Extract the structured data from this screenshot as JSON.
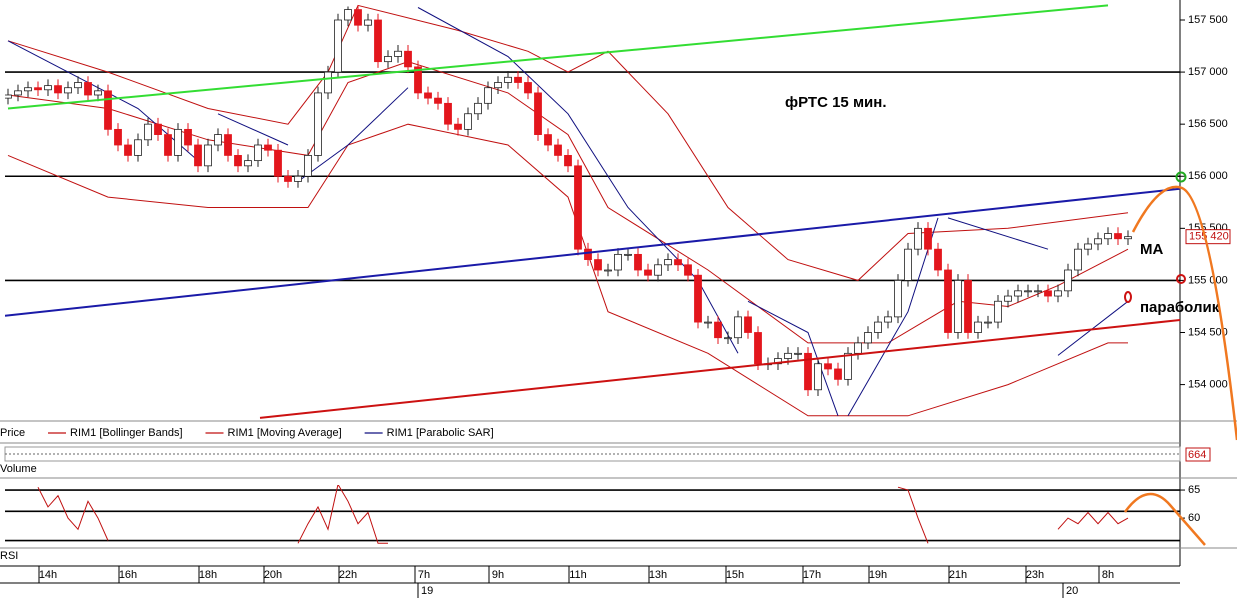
{
  "chart_data": {
    "type": "candlestick",
    "annotations": [
      "фРТС   15 мин.",
      "МА",
      "параболик"
    ],
    "legend": {
      "price": "Price"
    },
    "open": [
      156750,
      156780,
      156820,
      156850,
      156830,
      156870,
      156800,
      156850,
      156900,
      156780,
      156820,
      156450,
      156300,
      156200,
      156350,
      156500,
      156400,
      156200,
      156450,
      156300,
      156100,
      156300,
      156400,
      156200,
      156100,
      156150,
      156300,
      156250,
      156000,
      155950,
      156000,
      156200,
      156800,
      157000,
      157500,
      157600,
      157450,
      157500,
      157100,
      157150,
      157200,
      157050,
      156800,
      156750,
      156700,
      156500,
      156450,
      156600,
      156700,
      156850,
      156900,
      156950,
      156900,
      156800,
      156400,
      156300,
      156200,
      156100,
      155300,
      155200,
      155100,
      155100,
      155250,
      155250,
      155100,
      155050,
      155150,
      155200,
      155150,
      155050,
      154600,
      154600,
      154450,
      154450,
      154650,
      154500,
      154200,
      154200,
      154250,
      154300,
      154300,
      153950,
      154200,
      154150,
      154050,
      154300,
      154400,
      154500,
      154600,
      154650,
      155000,
      155300,
      155500,
      155300,
      155100,
      154500,
      155000,
      154500,
      154600,
      154600,
      154800,
      154850,
      154900,
      154900,
      154900,
      154850,
      154900,
      155100,
      155300,
      155350,
      155400,
      155450,
      155400
    ],
    "high": [
      156840,
      156880,
      156910,
      156910,
      156930,
      156930,
      156910,
      156960,
      156960,
      156880,
      156880,
      156510,
      156360,
      156410,
      156560,
      156560,
      156460,
      156510,
      156510,
      156360,
      156360,
      156460,
      156460,
      156260,
      156210,
      156360,
      156360,
      156310,
      156060,
      156060,
      156260,
      156860,
      157060,
      157560,
      157630,
      157640,
      157560,
      157560,
      157210,
      157260,
      157260,
      157110,
      156860,
      156810,
      156760,
      156560,
      156660,
      156760,
      156910,
      156960,
      157010,
      157010,
      156960,
      156860,
      156460,
      156360,
      156260,
      156160,
      155360,
      155260,
      155160,
      155310,
      155310,
      155310,
      155160,
      155210,
      155260,
      155260,
      155210,
      155110,
      154660,
      154660,
      154510,
      154710,
      154710,
      154560,
      154260,
      154310,
      154360,
      154360,
      154360,
      154260,
      154260,
      154210,
      154360,
      154460,
      154560,
      154660,
      154710,
      155060,
      155360,
      155560,
      155560,
      155360,
      155160,
      155060,
      155060,
      154660,
      154660,
      154860,
      154910,
      154960,
      154960,
      154960,
      154960,
      154960,
      155160,
      155360,
      155410,
      155460,
      155510,
      155510,
      155480
    ],
    "low": [
      156690,
      156720,
      156760,
      156770,
      156770,
      156740,
      156740,
      156790,
      156720,
      156720,
      156390,
      156240,
      156140,
      156140,
      156290,
      156340,
      156140,
      156140,
      156240,
      156040,
      156040,
      156240,
      156140,
      156040,
      156040,
      156090,
      156190,
      155940,
      155890,
      155890,
      155940,
      156140,
      156740,
      156940,
      157440,
      157390,
      157390,
      157040,
      157040,
      157090,
      156990,
      156740,
      156690,
      156640,
      156440,
      156390,
      156390,
      156540,
      156640,
      156790,
      156840,
      156840,
      156740,
      156340,
      156240,
      156140,
      156040,
      155240,
      155140,
      155040,
      155040,
      155040,
      155190,
      155040,
      154990,
      154990,
      155090,
      155090,
      154990,
      154540,
      154540,
      154390,
      154390,
      154390,
      154440,
      154140,
      154140,
      154140,
      154190,
      154240,
      153890,
      153890,
      154090,
      153990,
      153990,
      154240,
      154340,
      154440,
      154540,
      154590,
      154940,
      155240,
      155240,
      155040,
      154440,
      154440,
      154440,
      154440,
      154540,
      154540,
      154740,
      154790,
      154840,
      154840,
      154790,
      154790,
      154840,
      155040,
      155240,
      155290,
      155340,
      155340,
      155340
    ],
    "close": [
      156780,
      156820,
      156850,
      156830,
      156870,
      156800,
      156850,
      156900,
      156780,
      156820,
      156450,
      156300,
      156200,
      156350,
      156500,
      156400,
      156200,
      156450,
      156300,
      156100,
      156300,
      156400,
      156200,
      156100,
      156150,
      156300,
      156250,
      156000,
      155950,
      156000,
      156200,
      156800,
      157000,
      157500,
      157600,
      157450,
      157500,
      157100,
      157150,
      157200,
      157050,
      156800,
      156750,
      156700,
      156500,
      156450,
      156600,
      156700,
      156850,
      156900,
      156950,
      156900,
      156800,
      156400,
      156300,
      156200,
      156100,
      155300,
      155200,
      155100,
      155100,
      155250,
      155250,
      155100,
      155050,
      155150,
      155200,
      155150,
      155050,
      154600,
      154600,
      154450,
      154450,
      154650,
      154500,
      154200,
      154200,
      154250,
      154300,
      154300,
      153950,
      154200,
      154150,
      154050,
      154300,
      154400,
      154500,
      154600,
      154650,
      155000,
      155300,
      155500,
      155300,
      155100,
      154500,
      155000,
      154500,
      154600,
      154600,
      154800,
      154850,
      154900,
      154900,
      154900,
      154850,
      154900,
      155100,
      155300,
      155350,
      155400,
      155450,
      155400,
      155420
    ],
    "up_color": "#ffffff",
    "down_color": "#e3161d",
    "xlim": [
      -0.3,
      117.2
    ],
    "ylim": [
      153660,
      157644
    ],
    "yticks": [
      {
        "value": 154000,
        "label": "154 000"
      },
      {
        "value": 154500,
        "label": "154 500"
      },
      {
        "value": 155000,
        "label": "155 000"
      },
      {
        "value": 155500,
        "label": "155 500"
      },
      {
        "value": 156000,
        "label": "156 000"
      },
      {
        "value": 156500,
        "label": "156 500"
      },
      {
        "value": 157000,
        "label": "157 000"
      },
      {
        "value": 157500,
        "label": "157 500"
      }
    ],
    "last_price": {
      "value": 155420,
      "label": "155 420"
    },
    "xticks": [
      {
        "value": 4,
        "label": "14h"
      },
      {
        "value": 12,
        "label": "16h"
      },
      {
        "value": 20,
        "label": "18h"
      },
      {
        "value": 26.5,
        "label": "20h"
      },
      {
        "value": 34,
        "label": "22h"
      },
      {
        "value": 41.6,
        "label": "7h"
      },
      {
        "value": 49,
        "label": "9h"
      },
      {
        "value": 57,
        "label": "11h"
      },
      {
        "value": 65,
        "label": "13h"
      },
      {
        "value": 72.7,
        "label": "15h"
      },
      {
        "value": 80.4,
        "label": "17h"
      },
      {
        "value": 87,
        "label": "19h"
      },
      {
        "value": 95,
        "label": "21h"
      },
      {
        "value": 102.7,
        "label": "23h"
      },
      {
        "value": 110,
        "label": "8h"
      }
    ],
    "date_ticks": [
      {
        "value": 41,
        "label": "19"
      },
      {
        "value": 105.5,
        "label": "20"
      }
    ],
    "hlines": [
      {
        "value": 157000,
        "color": "#000000"
      },
      {
        "value": 156000,
        "color": "#000000"
      },
      {
        "value": 155000,
        "color": "#000000"
      }
    ],
    "trendlines": [
      {
        "color": "#33dd33",
        "x": [
          0,
          110
        ],
        "values": [
          156650,
          157640
        ]
      },
      {
        "color": "#1a1aa8",
        "x": [
          -0.3,
          117.2
        ],
        "values": [
          154660,
          155880
        ]
      },
      {
        "color": "#cc1111",
        "x": [
          25.2,
          117.2
        ],
        "values": [
          153680,
          154620
        ]
      }
    ],
    "indicators": [
      {
        "name": "RIM1 [Bollinger Bands]",
        "color": "#c01010",
        "lines": [
          {
            "x": [
              0,
              10,
              20,
              28,
              32,
              35,
              45,
              52,
              56,
              60,
              66,
              72,
              78,
              85,
              90,
              100,
              112
            ],
            "values": [
              157300,
              157000,
              156650,
              156500,
              157000,
              157640,
              157400,
              157200,
              157000,
              157200,
              156600,
              155700,
              155200,
              155000,
              155450,
              155500,
              155650
            ]
          },
          {
            "x": [
              0,
              10,
              20,
              30,
              34,
              40,
              50,
              56,
              60,
              70,
              80,
              85,
              90,
              100,
              110,
              112
            ],
            "values": [
              156200,
              155800,
              155700,
              155700,
              156300,
              156500,
              156300,
              155800,
              154700,
              154300,
              153700,
              153700,
              153700,
              154000,
              154400,
              154400
            ]
          }
        ]
      },
      {
        "name": "RIM1 [Moving Average]",
        "color": "#c01010",
        "lines": [
          {
            "x": [
              0,
              10,
              20,
              30,
              34,
              40,
              50,
              56,
              60,
              70,
              80,
              88,
              95,
              100,
              105,
              112
            ],
            "values": [
              156780,
              156650,
              156350,
              156200,
              156900,
              157100,
              156800,
              156400,
              155700,
              155100,
              154400,
              154400,
              154800,
              154750,
              154950,
              155300
            ]
          }
        ]
      },
      {
        "name": "RIM1 [Parabolic SAR]",
        "color": "#101080",
        "lines": [
          {
            "x": [
              0,
              13,
              19,
              20,
              21,
              28,
              28.5,
              29,
              34,
              40,
              40.5,
              41,
              50,
              56,
              62,
              69,
              73,
              73.5,
              74,
              80,
              83,
              83.5,
              84,
              90,
              93,
              93.5,
              94,
              104,
              104.5,
              105,
              112
            ],
            "values": [
              157300,
              156650,
              156150,
              null,
              156600,
              156300,
              null,
              155950,
              156300,
              156850,
              null,
              157620,
              157150,
              156600,
              155700,
              155000,
              154300,
              null,
              154800,
              154500,
              153700,
              null,
              153700,
              154700,
              155600,
              null,
              155600,
              155300,
              null,
              154280,
              154800
            ]
          }
        ]
      }
    ],
    "volume": {
      "label": "Volume",
      "last_value": 664
    },
    "rsi": {
      "label": "RSI",
      "ylim": [
        55.2,
        65.9
      ],
      "yticks": [
        65,
        60
      ],
      "hlines": [
        65,
        61.2,
        56
      ],
      "x": [
        3,
        4,
        5,
        6,
        7,
        8,
        9,
        10,
        10.5,
        29,
        30,
        31,
        32,
        33,
        34,
        35,
        36,
        37,
        38,
        38.5,
        89,
        90,
        91,
        92,
        92.5,
        105,
        106,
        107,
        108,
        109,
        110,
        111,
        112
      ],
      "values": [
        65.5,
        62,
        64,
        60,
        58,
        63,
        60,
        56,
        null,
        55.5,
        59,
        62,
        58,
        66,
        63,
        59,
        61,
        55.5,
        55.5,
        null,
        65.5,
        65,
        60,
        55.5,
        null,
        58,
        60,
        59,
        61,
        59,
        61,
        59,
        60
      ],
      "color": "#c01010"
    }
  }
}
